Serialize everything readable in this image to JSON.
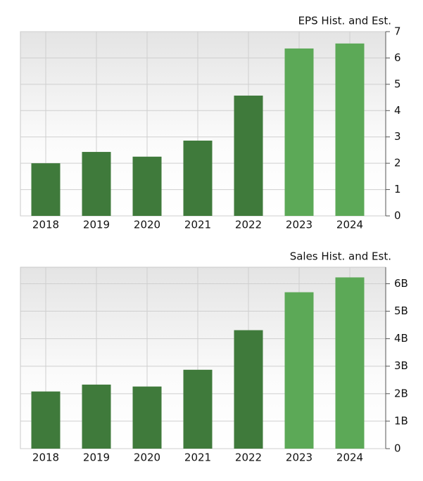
{
  "chart_data": [
    {
      "type": "bar",
      "title": "EPS Hist. and Est.",
      "categories": [
        "2018",
        "2019",
        "2020",
        "2021",
        "2022",
        "2023",
        "2024"
      ],
      "values": [
        2.0,
        2.43,
        2.25,
        2.86,
        4.57,
        6.36,
        6.55
      ],
      "colors": [
        "#3f7a3b",
        "#3f7a3b",
        "#3f7a3b",
        "#3f7a3b",
        "#3f7a3b",
        "#5ca957",
        "#5ca957"
      ],
      "ylim": [
        0,
        7
      ],
      "yticks": [
        0,
        1,
        2,
        3,
        4,
        5,
        6,
        7
      ],
      "grid": true
    },
    {
      "type": "bar",
      "title": "Sales Hist. and Est.",
      "categories": [
        "2018",
        "2019",
        "2020",
        "2021",
        "2022",
        "2023",
        "2024"
      ],
      "values": [
        2080000000,
        2330000000,
        2260000000,
        2870000000,
        4310000000,
        5690000000,
        6230000000
      ],
      "colors": [
        "#3f7a3b",
        "#3f7a3b",
        "#3f7a3b",
        "#3f7a3b",
        "#3f7a3b",
        "#5ca957",
        "#5ca957"
      ],
      "ylim": [
        0,
        6600000000
      ],
      "yticks": [
        0,
        {
          "value": 1000000000,
          "label": "1B"
        },
        {
          "value": 2000000000,
          "label": "2B"
        },
        {
          "value": 3000000000,
          "label": "3B"
        },
        {
          "value": 4000000000,
          "label": "4B"
        },
        {
          "value": 5000000000,
          "label": "5B"
        },
        {
          "value": 6000000000,
          "label": "6B"
        }
      ],
      "grid": true
    }
  ]
}
